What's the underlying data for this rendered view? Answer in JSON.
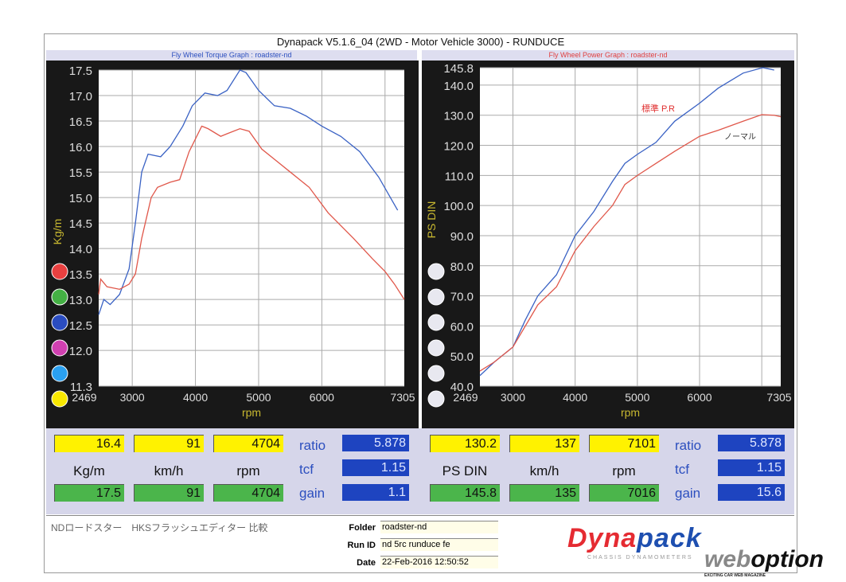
{
  "header": {
    "title": "Dynapack  V5.1.6_04 (2WD - Motor Vehicle 3000) - RUNDUCE",
    "torque_graph_title": "Fly Wheel Torque Graph : roadster-nd",
    "power_graph_title": "Fly Wheel Power Graph : roadster-nd"
  },
  "colors": {
    "series_blue": "#3a62c4",
    "series_red": "#e0574a",
    "panel": "#181818",
    "title_blue": "#2c4fbf",
    "title_red": "#e04040"
  },
  "legend_dots": {
    "torque": [
      "#e84040",
      "#44b044",
      "#2a4cc0",
      "#d040b0",
      "#2aa0f0",
      "#f8e800"
    ],
    "power": [
      "#e8e8f0",
      "#e8e8f0",
      "#e8e8f0",
      "#e8e8f0",
      "#e8e8f0",
      "#e8e8f0"
    ]
  },
  "chart_data": [
    {
      "type": "line",
      "title": "Fly Wheel Torque Graph : roadster-nd",
      "xlabel": "rpm",
      "ylabel": "Kg/m",
      "xlim": [
        2469,
        7305
      ],
      "ylim": [
        11.3,
        17.5
      ],
      "xticks": [
        "2469",
        "3000",
        "4000",
        "5000",
        "6000",
        "7305"
      ],
      "yticks": [
        "17.5",
        "17.0",
        "16.5",
        "16.0",
        "15.5",
        "15.0",
        "14.5",
        "14.0",
        "13.5",
        "13.0",
        "12.5",
        "12.0",
        "11.3"
      ],
      "grid": true,
      "series": [
        {
          "color": "#3a62c4",
          "x": [
            2469,
            2550,
            2650,
            2800,
            2950,
            3050,
            3150,
            3250,
            3450,
            3600,
            3800,
            3950,
            4150,
            4350,
            4500,
            4704,
            4800,
            5000,
            5250,
            5500,
            5750,
            6000,
            6300,
            6600,
            6900,
            7200
          ],
          "y": [
            12.7,
            13.0,
            12.9,
            13.1,
            13.6,
            14.5,
            15.5,
            15.85,
            15.8,
            16.0,
            16.4,
            16.8,
            17.05,
            17.0,
            17.1,
            17.5,
            17.45,
            17.1,
            16.8,
            16.75,
            16.6,
            16.4,
            16.2,
            15.9,
            15.4,
            14.75
          ]
        },
        {
          "color": "#e0574a",
          "x": [
            2469,
            2500,
            2600,
            2800,
            2950,
            3050,
            3150,
            3300,
            3400,
            3600,
            3750,
            3900,
            4100,
            4200,
            4400,
            4500,
            4704,
            4850,
            5050,
            5300,
            5500,
            5800,
            6100,
            6500,
            6800,
            7000,
            7150,
            7305
          ],
          "y": [
            13.1,
            13.4,
            13.25,
            13.2,
            13.3,
            13.5,
            14.2,
            15.0,
            15.2,
            15.3,
            15.35,
            15.9,
            16.4,
            16.35,
            16.2,
            16.25,
            16.35,
            16.3,
            15.95,
            15.7,
            15.5,
            15.2,
            14.7,
            14.2,
            13.8,
            13.55,
            13.3,
            13.0
          ]
        }
      ]
    },
    {
      "type": "line",
      "title": "Fly Wheel Power Graph : roadster-nd",
      "xlabel": "rpm",
      "ylabel": "PS DIN",
      "xlim": [
        2469,
        7305
      ],
      "ylim": [
        40,
        145.8
      ],
      "xticks": [
        "2469",
        "3000",
        "4000",
        "5000",
        "6000",
        "7305"
      ],
      "yticks": [
        "145.8",
        "140.0",
        "130.0",
        "120.0",
        "110.0",
        "100.0",
        "90.0",
        "80.0",
        "70.0",
        "60.0",
        "50.0",
        "40.0"
      ],
      "grid": true,
      "annotations": [
        "標準 P.R",
        "ノーマル"
      ],
      "series": [
        {
          "color": "#3a62c4",
          "x": [
            2469,
            2700,
            3000,
            3200,
            3400,
            3700,
            4000,
            4300,
            4600,
            4800,
            5000,
            5300,
            5600,
            6000,
            6300,
            6700,
            7016,
            7200
          ],
          "y": [
            43.5,
            48,
            53,
            62,
            70,
            77,
            90,
            98,
            108,
            114,
            117,
            121,
            128,
            134,
            139,
            144,
            145.8,
            145
          ]
        },
        {
          "color": "#e0574a",
          "x": [
            2469,
            2700,
            3000,
            3200,
            3400,
            3700,
            4000,
            4300,
            4600,
            4800,
            5000,
            5300,
            5600,
            6000,
            6300,
            6700,
            7000,
            7200,
            7305
          ],
          "y": [
            45,
            48,
            53,
            60,
            67,
            73,
            85,
            93,
            100,
            107,
            110,
            114,
            118,
            123,
            125,
            128,
            130.2,
            130,
            129.5
          ]
        }
      ]
    }
  ],
  "torque_readout": {
    "current": [
      "16.4",
      "91",
      "4704"
    ],
    "units": [
      "Kg/m",
      "km/h",
      "rpm"
    ],
    "peak": [
      "17.5",
      "91",
      "4704"
    ],
    "params": [
      {
        "label": "ratio",
        "value": "5.878"
      },
      {
        "label": "tcf",
        "value": "1.15"
      },
      {
        "label": "gain",
        "value": "1.1"
      }
    ]
  },
  "power_readout": {
    "current": [
      "130.2",
      "137",
      "7101"
    ],
    "units": [
      "PS DIN",
      "km/h",
      "rpm"
    ],
    "peak": [
      "145.8",
      "135",
      "7016"
    ],
    "params": [
      {
        "label": "ratio",
        "value": "5.878"
      },
      {
        "label": "tcf",
        "value": "1.15"
      },
      {
        "label": "gain",
        "value": "15.6"
      }
    ]
  },
  "info": {
    "note": "NDロードスター　HKSフラッシュエディター 比較",
    "folder_label": "Folder",
    "folder": "roadster-nd",
    "runid_label": "Run ID",
    "runid": "nd 5rc  runduce fe",
    "date_label": "Date",
    "date": "22-Feb-2016  12:50:52"
  },
  "logo": {
    "dyna": "Dyna",
    "pack": "pack",
    "sub": "CHASSIS DYNAMOMETERS"
  },
  "watermark": {
    "web": "web",
    "option": "option",
    "sub": "EXCITING CAR WEB MAGAZINE"
  }
}
